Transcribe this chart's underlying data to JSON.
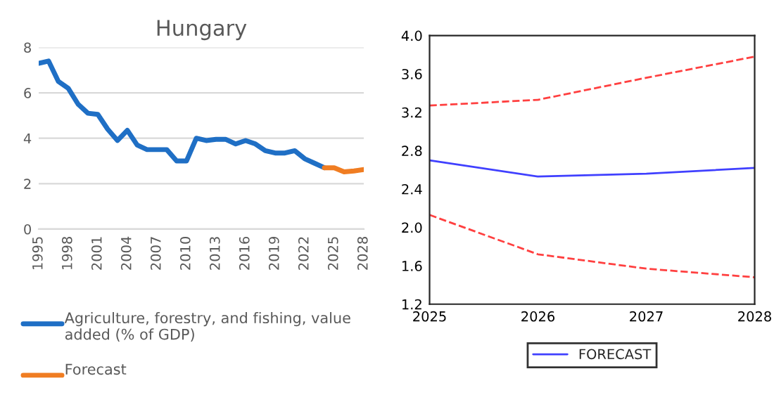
{
  "chart_data": [
    {
      "type": "line",
      "title": "Hungary",
      "x": [
        1995,
        1996,
        1997,
        1998,
        1999,
        2000,
        2001,
        2002,
        2003,
        2004,
        2005,
        2006,
        2007,
        2008,
        2009,
        2010,
        2011,
        2012,
        2013,
        2014,
        2015,
        2016,
        2017,
        2018,
        2019,
        2020,
        2021,
        2022,
        2023,
        2024
      ],
      "series": [
        {
          "name": "Agriculture, forestry, and fishing, value added (% of GDP)",
          "color": "#1f6fc5",
          "values": [
            7.3,
            7.4,
            6.5,
            6.2,
            5.5,
            5.1,
            5.05,
            4.4,
            3.9,
            4.35,
            3.7,
            3.5,
            3.5,
            3.5,
            3.0,
            3.0,
            4.0,
            3.9,
            3.95,
            3.95,
            3.75,
            3.9,
            3.75,
            3.45,
            3.35,
            3.35,
            3.45,
            3.1,
            2.9,
            2.7
          ]
        },
        {
          "name": "Forecast",
          "color": "#f07d22",
          "x": [
            2024,
            2025,
            2026,
            2027,
            2028
          ],
          "values": [
            2.7,
            2.7,
            2.52,
            2.56,
            2.62
          ]
        }
      ],
      "xlim": [
        1995,
        2028
      ],
      "xticks": [
        1995,
        1998,
        2001,
        2004,
        2007,
        2010,
        2013,
        2016,
        2019,
        2022,
        2025,
        2028
      ],
      "ylim": [
        0,
        8
      ],
      "yticks": [
        0,
        2,
        4,
        6,
        8
      ],
      "grid": "y",
      "legend": "bottom"
    },
    {
      "type": "line",
      "x": [
        2025,
        2026,
        2027,
        2028
      ],
      "series": [
        {
          "name": "FORECAST",
          "color": "#4040ff",
          "values": [
            2.7,
            2.53,
            2.56,
            2.62
          ]
        },
        {
          "color": "#ff4040",
          "line_style": "dashed",
          "values": [
            3.27,
            3.33,
            3.56,
            3.78
          ]
        },
        {
          "color": "#ff4040",
          "line_style": "dashed",
          "values": [
            2.13,
            1.72,
            1.57,
            1.48
          ]
        }
      ],
      "xlim": [
        2025,
        2028
      ],
      "xticks": [
        2025,
        2026,
        2027,
        2028
      ],
      "ylim": [
        1.2,
        4.0
      ],
      "yticks": [
        {
          "value": 1.2,
          "label": "1.2"
        },
        {
          "value": 1.6,
          "label": "1.6"
        },
        {
          "value": 2.0,
          "label": "2.0"
        },
        {
          "value": 2.4,
          "label": "2.4"
        },
        {
          "value": 2.8,
          "label": "2.8"
        },
        {
          "value": 3.2,
          "label": "3.2"
        },
        {
          "value": 3.6,
          "label": "3.6"
        },
        {
          "value": 4.0,
          "label": "4.0"
        }
      ],
      "grid": false,
      "legend": "bottom"
    }
  ]
}
